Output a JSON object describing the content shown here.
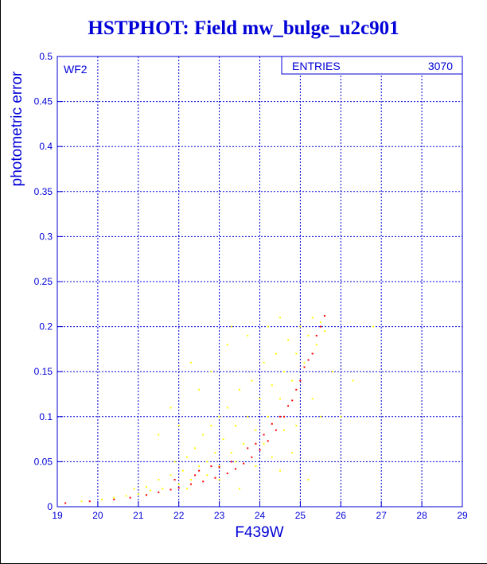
{
  "chart_data": {
    "type": "scatter",
    "title": "HSTPHOT: Field mw_bulge_u2c901",
    "xlabel": "F439W",
    "ylabel": "photometric error",
    "xlim": [
      19,
      29
    ],
    "ylim": [
      0,
      0.5
    ],
    "xticks": [
      "19",
      "20",
      "21",
      "22",
      "23",
      "24",
      "25",
      "26",
      "27",
      "28",
      "29"
    ],
    "yticks": [
      "0",
      "0.05",
      "0.1",
      "0.15",
      "0.2",
      "0.25",
      "0.3",
      "0.35",
      "0.4",
      "0.45",
      "0.5"
    ],
    "grid": true,
    "panel_label": "WF2",
    "stats": {
      "label": "ENTRIES",
      "value": "3070"
    },
    "colors": {
      "text": "#0000d8",
      "grid": "#0000d8",
      "series_yellow": "#ffff00",
      "series_red": "#ff0000"
    },
    "series": [
      {
        "color": "#ffff00",
        "points": [
          [
            19.6,
            0.006
          ],
          [
            20.1,
            0.008
          ],
          [
            20.4,
            0.01
          ],
          [
            20.7,
            0.012
          ],
          [
            20.9,
            0.02
          ],
          [
            21.0,
            0.014
          ],
          [
            21.2,
            0.022
          ],
          [
            21.3,
            0.018
          ],
          [
            21.5,
            0.03
          ],
          [
            21.6,
            0.02
          ],
          [
            21.8,
            0.035
          ],
          [
            21.9,
            0.05
          ],
          [
            22.0,
            0.025
          ],
          [
            22.1,
            0.04
          ],
          [
            22.2,
            0.055
          ],
          [
            22.3,
            0.03
          ],
          [
            22.4,
            0.065
          ],
          [
            22.5,
            0.045
          ],
          [
            22.6,
            0.08
          ],
          [
            22.7,
            0.05
          ],
          [
            22.8,
            0.09
          ],
          [
            22.9,
            0.06
          ],
          [
            23.0,
            0.1
          ],
          [
            23.0,
            0.045
          ],
          [
            23.1,
            0.075
          ],
          [
            23.2,
            0.11
          ],
          [
            23.3,
            0.06
          ],
          [
            23.4,
            0.09
          ],
          [
            23.5,
            0.13
          ],
          [
            23.6,
            0.07
          ],
          [
            23.7,
            0.1
          ],
          [
            23.8,
            0.14
          ],
          [
            23.9,
            0.085
          ],
          [
            24.0,
            0.12
          ],
          [
            24.1,
            0.16
          ],
          [
            24.2,
            0.1
          ],
          [
            24.3,
            0.135
          ],
          [
            24.4,
            0.17
          ],
          [
            24.5,
            0.12
          ],
          [
            24.6,
            0.15
          ],
          [
            24.7,
            0.185
          ],
          [
            24.8,
            0.14
          ],
          [
            24.9,
            0.17
          ],
          [
            25.0,
            0.2
          ],
          [
            25.1,
            0.16
          ],
          [
            25.2,
            0.19
          ],
          [
            25.3,
            0.21
          ],
          [
            25.4,
            0.18
          ],
          [
            25.5,
            0.205
          ],
          [
            25.6,
            0.195
          ],
          [
            22.5,
            0.13
          ],
          [
            22.8,
            0.15
          ],
          [
            23.2,
            0.18
          ],
          [
            23.7,
            0.19
          ],
          [
            24.2,
            0.2
          ],
          [
            24.5,
            0.21
          ],
          [
            21.8,
            0.11
          ],
          [
            22.0,
            0.09
          ],
          [
            23.5,
            0.02
          ],
          [
            24.5,
            0.04
          ],
          [
            24.8,
            0.06
          ],
          [
            25.2,
            0.03
          ],
          [
            26.0,
            0.1
          ],
          [
            26.3,
            0.14
          ],
          [
            26.8,
            0.2
          ],
          [
            25.8,
            0.15
          ],
          [
            23.9,
            0.045
          ],
          [
            24.3,
            0.055
          ],
          [
            22.3,
            0.16
          ],
          [
            21.5,
            0.08
          ],
          [
            23.3,
            0.2
          ],
          [
            24.9,
            0.09
          ],
          [
            22.7,
            0.035
          ],
          [
            23.4,
            0.05
          ],
          [
            24.1,
            0.07
          ],
          [
            24.6,
            0.085
          ],
          [
            25.3,
            0.12
          ],
          [
            25.5,
            0.1
          ],
          [
            22.2,
            0.02
          ],
          [
            23.0,
            0.03
          ]
        ]
      },
      {
        "color": "#ff0000",
        "points": [
          [
            19.2,
            0.004
          ],
          [
            19.8,
            0.006
          ],
          [
            20.4,
            0.008
          ],
          [
            20.8,
            0.01
          ],
          [
            21.2,
            0.013
          ],
          [
            21.5,
            0.016
          ],
          [
            21.8,
            0.019
          ],
          [
            22.0,
            0.021
          ],
          [
            22.3,
            0.025
          ],
          [
            22.6,
            0.028
          ],
          [
            22.9,
            0.032
          ],
          [
            23.2,
            0.037
          ],
          [
            23.4,
            0.042
          ],
          [
            23.6,
            0.048
          ],
          [
            23.8,
            0.055
          ],
          [
            24.0,
            0.063
          ],
          [
            24.2,
            0.073
          ],
          [
            24.4,
            0.085
          ],
          [
            24.6,
            0.1
          ],
          [
            24.8,
            0.118
          ],
          [
            25.0,
            0.14
          ],
          [
            25.2,
            0.163
          ],
          [
            25.4,
            0.19
          ],
          [
            25.6,
            0.212
          ],
          [
            21.9,
            0.03
          ],
          [
            22.4,
            0.035
          ],
          [
            22.8,
            0.045
          ],
          [
            23.3,
            0.05
          ],
          [
            23.7,
            0.065
          ],
          [
            24.1,
            0.08
          ],
          [
            24.5,
            0.1
          ],
          [
            24.9,
            0.13
          ],
          [
            25.3,
            0.17
          ],
          [
            25.5,
            0.2
          ],
          [
            22.5,
            0.04
          ],
          [
            23.0,
            0.044
          ],
          [
            23.9,
            0.07
          ],
          [
            24.3,
            0.092
          ],
          [
            24.7,
            0.112
          ],
          [
            25.1,
            0.155
          ]
        ]
      }
    ]
  }
}
